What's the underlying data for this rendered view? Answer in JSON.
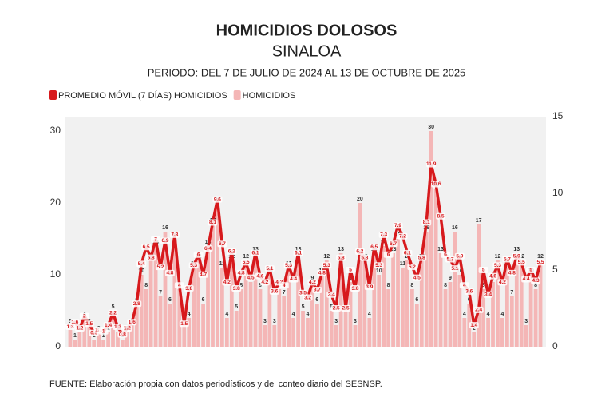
{
  "chart_data": {
    "type": "combo",
    "title": "HOMICIDIOS DOLOSOS",
    "subtitle": "SINALOA",
    "period": "PERIODO: DEL 7 DE JULIO DE 2024 AL 13 DE OCTUBRE DE 2025",
    "source": "FUENTE: Elaboración propia con datos periodísticos y del conteo diario del SESNSP.",
    "ylim": [
      0,
      32
    ],
    "yticks": [
      0,
      10,
      20,
      30
    ],
    "y2lim": [
      0,
      15
    ],
    "y2ticks": [
      0,
      5,
      10,
      15
    ],
    "legend": "top-left",
    "series": [
      {
        "name": "PROMEDIO MÓVIL (7 DÍAS) HOMICIDIOS",
        "type": "line",
        "axis": "y2",
        "color": "#d7191c",
        "values": [
          1.3,
          1.6,
          1.2,
          2.0,
          1.5,
          0.9,
          1.1,
          1.0,
          1.4,
          2.2,
          1.3,
          0.8,
          1.2,
          1.6,
          2.8,
          5.4,
          6.5,
          5.8,
          7.0,
          5.2,
          6.9,
          4.8,
          7.3,
          4.0,
          1.5,
          3.8,
          5.3,
          6.0,
          4.7,
          6.4,
          8.1,
          9.6,
          6.7,
          4.2,
          6.2,
          3.8,
          4.8,
          5.5,
          4.5,
          6.1,
          4.6,
          4.2,
          5.1,
          3.6,
          4.2,
          4.0,
          5.3,
          4.4,
          6.1,
          3.5,
          3.2,
          4.2,
          3.7,
          4.8,
          5.3,
          3.4,
          2.5,
          5.8,
          2.5,
          5.0,
          3.8,
          6.2,
          5.8,
          3.9,
          6.5,
          5.3,
          7.3,
          6.0,
          6.7,
          7.9,
          7.2,
          6.1,
          5.2,
          4.5,
          5.8,
          8.1,
          11.9,
          10.6,
          8.5,
          6.0,
          5.7,
          5.1,
          5.9,
          4.0,
          3.6,
          1.4,
          2.4,
          5.0,
          3.4,
          4.6,
          5.3,
          4.2,
          5.7,
          4.8,
          5.9,
          5.5,
          4.4,
          5.0,
          4.3,
          5.5
        ]
      },
      {
        "name": "HOMICIDIOS",
        "type": "bar",
        "axis": "y",
        "color": "#f4b6b6",
        "values": [
          3,
          1,
          2,
          4,
          3,
          1,
          2,
          1,
          2,
          5,
          2,
          1,
          2,
          3,
          6,
          10,
          8,
          12,
          14,
          7,
          16,
          6,
          15,
          8,
          3,
          4,
          11,
          12,
          6,
          14,
          17,
          20,
          11,
          4,
          12,
          5,
          8,
          12,
          9,
          13,
          8,
          3,
          10,
          3,
          8,
          7,
          11,
          4,
          13,
          5,
          4,
          9,
          6,
          10,
          12,
          5,
          3,
          13,
          6,
          9,
          3,
          20,
          12,
          4,
          13,
          10,
          14,
          8,
          13,
          15,
          11,
          12,
          8,
          6,
          12,
          16,
          30,
          22,
          13,
          8,
          9,
          16,
          10,
          4,
          6,
          2,
          17,
          8,
          4,
          9,
          12,
          4,
          11,
          7,
          13,
          12,
          3,
          10,
          8,
          12
        ]
      }
    ]
  }
}
